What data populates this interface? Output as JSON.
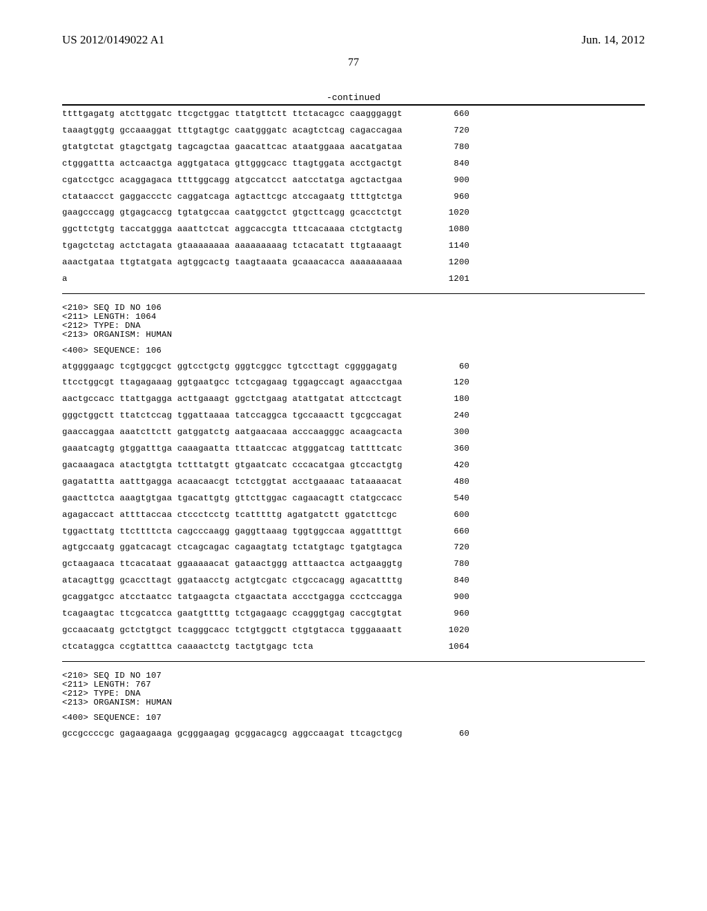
{
  "header": {
    "left": "US 2012/0149022 A1",
    "right": "Jun. 14, 2012"
  },
  "page_number": "77",
  "continued_label": "-continued",
  "block1": {
    "rows": [
      {
        "seq": "ttttgagatg atcttggatc ttcgctggac ttatgttctt ttctacagcc caagggaggt",
        "pos": "660"
      },
      {
        "seq": "taaagtggtg gccaaaggat tttgtagtgc caatgggatc acagtctcag cagaccagaa",
        "pos": "720"
      },
      {
        "seq": "gtatgtctat gtagctgatg tagcagctaa gaacattcac ataatggaaa aacatgataa",
        "pos": "780"
      },
      {
        "seq": "ctgggattta actcaactga aggtgataca gttgggcacc ttagtggata acctgactgt",
        "pos": "840"
      },
      {
        "seq": "cgatcctgcc acaggagaca ttttggcagg atgccatcct aatcctatga agctactgaa",
        "pos": "900"
      },
      {
        "seq": "ctataaccct gaggaccctc caggatcaga agtacttcgc atccagaatg ttttgtctga",
        "pos": "960"
      },
      {
        "seq": "gaagcccagg gtgagcaccg tgtatgccaa caatggctct gtgcttcagg gcacctctgt",
        "pos": "1020"
      },
      {
        "seq": "ggcttctgtg taccatggga aaattctcat aggcaccgta tttcacaaaa ctctgtactg",
        "pos": "1080"
      },
      {
        "seq": "tgagctctag actctagata gtaaaaaaaa aaaaaaaaag tctacatatt ttgtaaaagt",
        "pos": "1140"
      },
      {
        "seq": "aaactgataa ttgtatgata agtggcactg taagtaaata gcaaacacca aaaaaaaaaa",
        "pos": "1200"
      },
      {
        "seq": "a",
        "pos": "1201"
      }
    ]
  },
  "seq106": {
    "meta": [
      "<210> SEQ ID NO 106",
      "<211> LENGTH: 1064",
      "<212> TYPE: DNA",
      "<213> ORGANISM: HUMAN"
    ],
    "seq_label": "<400> SEQUENCE: 106",
    "rows": [
      {
        "seq": "atggggaagc tcgtggcgct ggtcctgctg gggtcggcc tgtccttagt cggggagatg",
        "pos": "60"
      },
      {
        "seq": "ttcctggcgt ttagagaaag ggtgaatgcc tctcgagaag tggagccagt agaacctgaa",
        "pos": "120"
      },
      {
        "seq": "aactgccacc ttattgagga acttgaaagt ggctctgaag atattgatat attcctcagt",
        "pos": "180"
      },
      {
        "seq": "gggctggctt ttatctccag tggattaaaa tatccaggca tgccaaactt tgcgccagat",
        "pos": "240"
      },
      {
        "seq": "gaaccaggaa aaatcttctt gatggatctg aatgaacaaa acccaagggc acaagcacta",
        "pos": "300"
      },
      {
        "seq": "gaaatcagtg gtggatttga caaagaatta tttaatccac atgggatcag tattttcatc",
        "pos": "360"
      },
      {
        "seq": "gacaaagaca atactgtgta tctttatgtt gtgaatcatc cccacatgaa gtccactgtg",
        "pos": "420"
      },
      {
        "seq": "gagatattta aatttgagga acaacaacgt tctctggtat acctgaaaac tataaaacat",
        "pos": "480"
      },
      {
        "seq": "gaacttctca aaagtgtgaa tgacattgtg gttcttggac cagaacagtt ctatgccacc",
        "pos": "540"
      },
      {
        "seq": "agagaccact attttaccaa ctccctcctg tcatttttg agatgatctt ggatcttcgc",
        "pos": "600"
      },
      {
        "seq": "tggacttatg ttcttttcta cagcccaagg gaggttaaag tggtggccaa aggattttgt",
        "pos": "660"
      },
      {
        "seq": "agtgccaatg ggatcacagt ctcagcagac cagaagtatg tctatgtagc tgatgtagca",
        "pos": "720"
      },
      {
        "seq": "gctaagaaca ttcacataat ggaaaaacat gataactggg atttaactca actgaaggtg",
        "pos": "780"
      },
      {
        "seq": "atacagttgg gcaccttagt ggataacctg actgtcgatc ctgccacagg agacattttg",
        "pos": "840"
      },
      {
        "seq": "gcaggatgcc atcctaatcc tatgaagcta ctgaactata accctgagga ccctccagga",
        "pos": "900"
      },
      {
        "seq": "tcagaagtac ttcgcatcca gaatgttttg tctgagaagc ccagggtgag caccgtgtat",
        "pos": "960"
      },
      {
        "seq": "gccaacaatg gctctgtgct tcagggcacc tctgtggctt ctgtgtacca tgggaaaatt",
        "pos": "1020"
      },
      {
        "seq": "ctcataggca ccgtatttca caaaactctg tactgtgagc tcta",
        "pos": "1064"
      }
    ]
  },
  "seq107": {
    "meta": [
      "<210> SEQ ID NO 107",
      "<211> LENGTH: 767",
      "<212> TYPE: DNA",
      "<213> ORGANISM: HUMAN"
    ],
    "seq_label": "<400> SEQUENCE: 107",
    "rows": [
      {
        "seq": "gccgccccgc gagaagaaga gcgggaagag gcggacagcg aggccaagat ttcagctgcg",
        "pos": "60"
      }
    ]
  }
}
